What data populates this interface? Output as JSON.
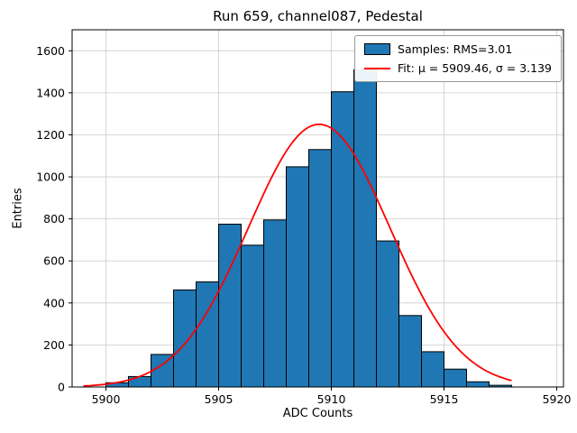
{
  "chart_data": {
    "type": "bar",
    "subtype": "histogram-with-gaussian-fit",
    "title": "Run 659, channel087, Pedestal",
    "xlabel": "ADC Counts",
    "ylabel": "Entries",
    "xlim": [
      5898.5,
      5920.3
    ],
    "ylim": [
      0,
      1700
    ],
    "xticks": [
      5900,
      5905,
      5910,
      5915,
      5920
    ],
    "yticks": [
      0,
      200,
      400,
      600,
      800,
      1000,
      1200,
      1400,
      1600
    ],
    "grid": true,
    "legend_position": "top-right",
    "bar_color": "#1f77b4",
    "bar_edge_color": "#000000",
    "curve_color": "#ff0000",
    "bin_start": 5900,
    "bin_width": 1,
    "values": [
      20,
      50,
      155,
      462,
      500,
      775,
      675,
      795,
      1048,
      1130,
      1405,
      1510,
      695,
      340,
      168,
      85,
      25,
      8
    ],
    "fit": {
      "mu": 5909.46,
      "sigma": 3.139,
      "amplitude": 1250,
      "x_start": 5899,
      "x_end": 5918
    },
    "legend": [
      {
        "type": "patch",
        "label": "Samples: RMS=3.01"
      },
      {
        "type": "line",
        "label": "Fit: μ = 5909.46, σ = 3.139"
      }
    ]
  }
}
